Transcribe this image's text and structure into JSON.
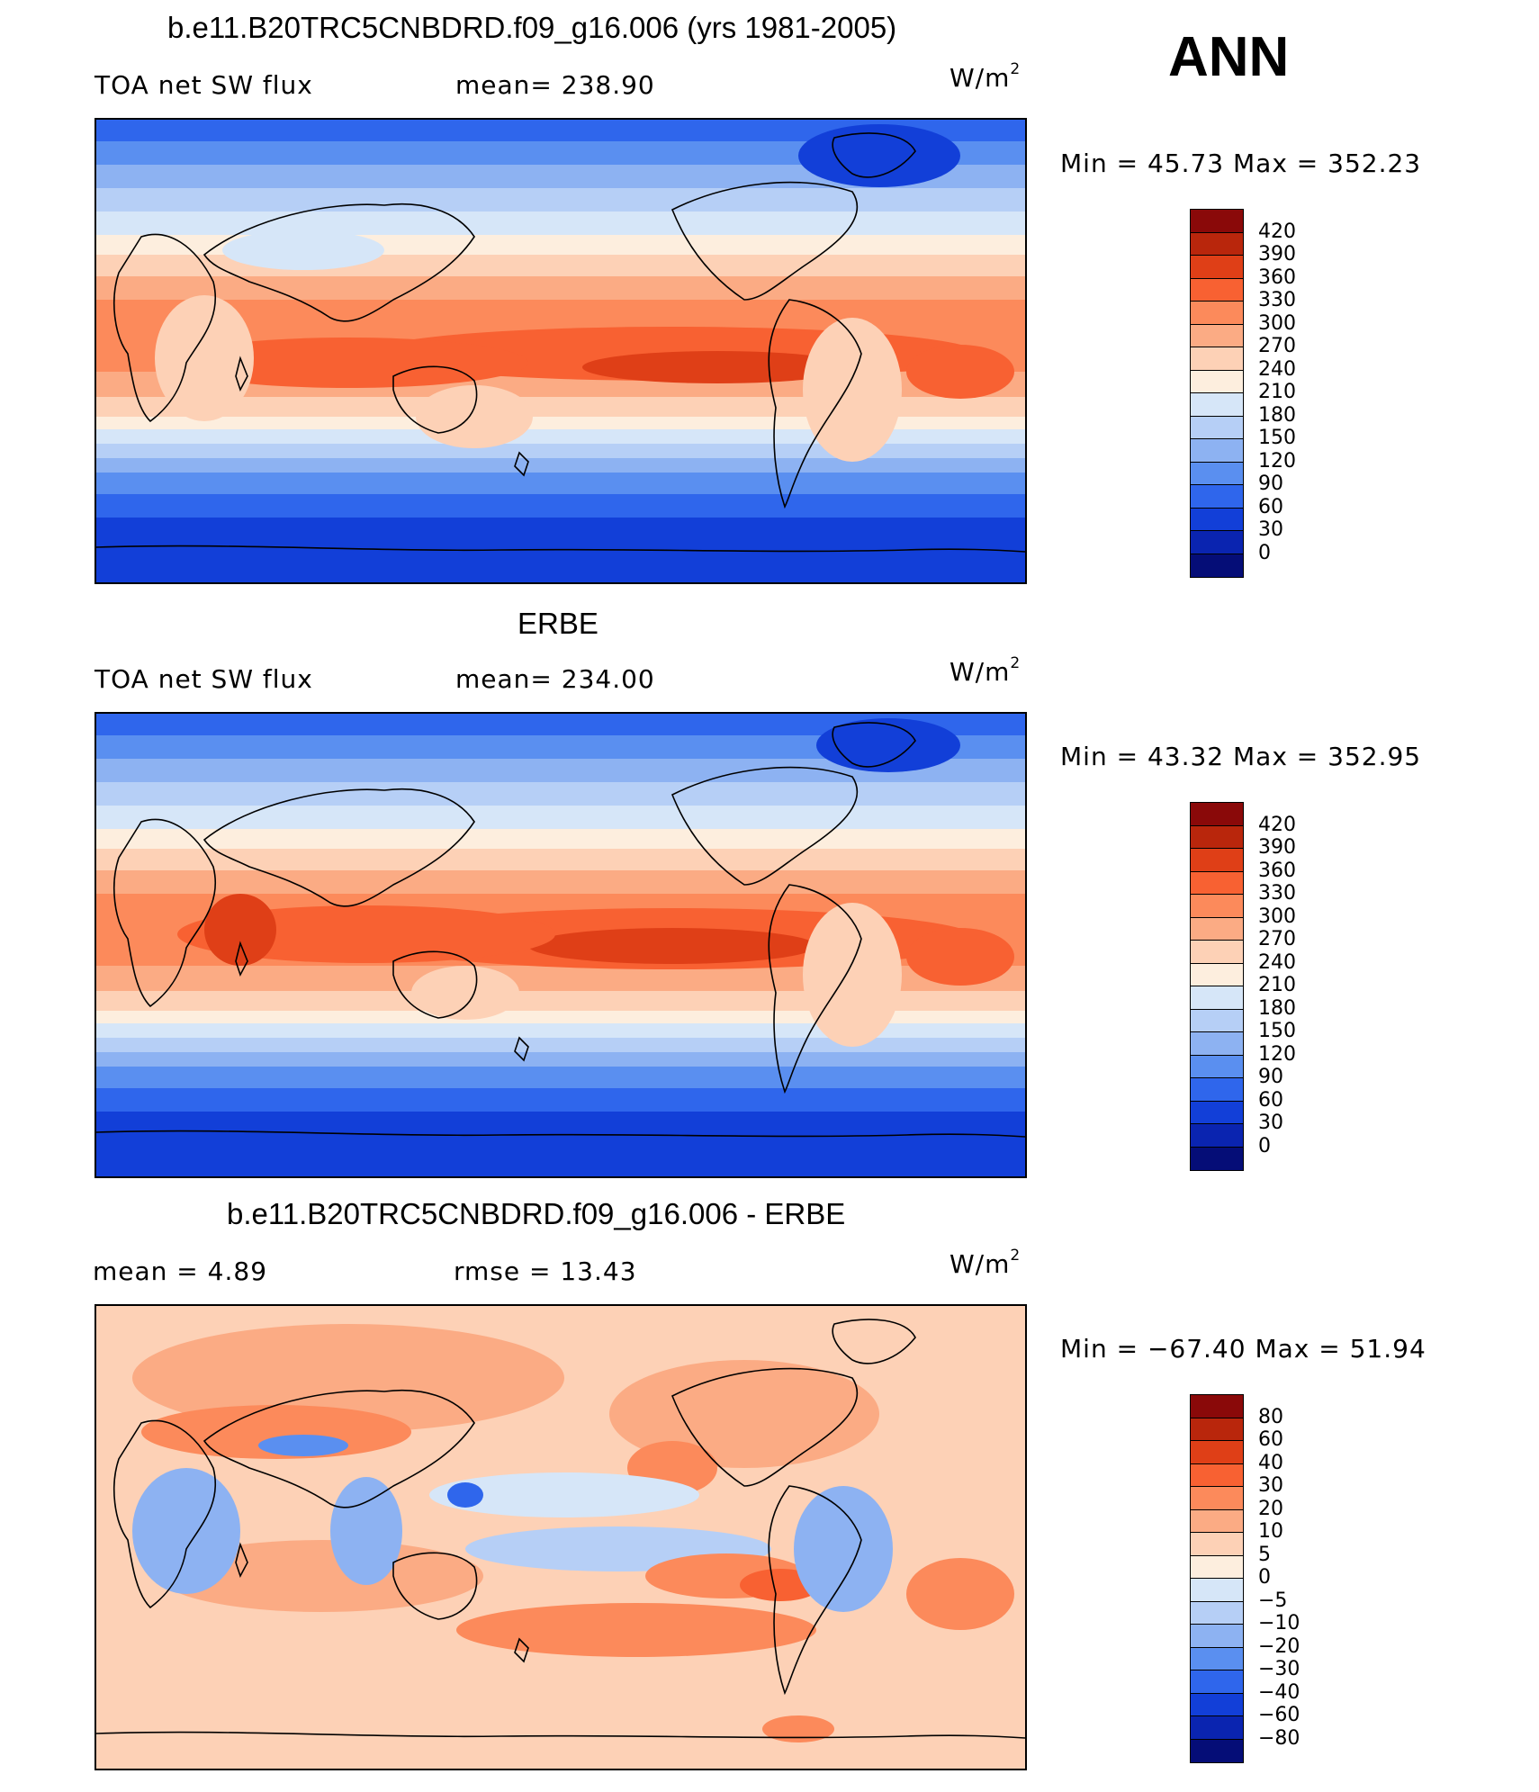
{
  "season": "ANN",
  "panels": [
    {
      "id": "model",
      "title": "b.e11.B20TRC5CNBDRD.f09_g16.006 (yrs 1981-2005)",
      "left_text": "TOA net SW flux",
      "center_text": "mean=  238.90",
      "units_base": "W/m",
      "units_exp": "2",
      "minmax": "Min =   45.73 Max = 352.23",
      "levels": [
        "420",
        "390",
        "360",
        "330",
        "300",
        "270",
        "240",
        "210",
        "180",
        "150",
        "120",
        "90",
        "60",
        "30",
        "0"
      ],
      "colors": [
        "#8a0909",
        "#b9260c",
        "#df3f17",
        "#f86132",
        "#fc8a5b",
        "#fbab84",
        "#fdd1b6",
        "#fdeede",
        "#d6e6f8",
        "#b6cff6",
        "#8db2f2",
        "#5a8ff0",
        "#2f66ec",
        "#123fd8",
        "#0a24b0",
        "#050d77"
      ]
    },
    {
      "id": "obs",
      "title": "ERBE",
      "left_text": "TOA net SW flux",
      "center_text": "mean=  234.00",
      "units_base": "W/m",
      "units_exp": "2",
      "minmax": "Min =   43.32 Max = 352.95",
      "levels": [
        "420",
        "390",
        "360",
        "330",
        "300",
        "270",
        "240",
        "210",
        "180",
        "150",
        "120",
        "90",
        "60",
        "30",
        "0"
      ],
      "colors": [
        "#8a0909",
        "#b9260c",
        "#df3f17",
        "#f86132",
        "#fc8a5b",
        "#fbab84",
        "#fdd1b6",
        "#fdeede",
        "#d6e6f8",
        "#b6cff6",
        "#8db2f2",
        "#5a8ff0",
        "#2f66ec",
        "#123fd8",
        "#0a24b0",
        "#050d77"
      ]
    },
    {
      "id": "diff",
      "title": "b.e11.B20TRC5CNBDRD.f09_g16.006 - ERBE",
      "left_text": "mean =    4.89",
      "center_text": "rmse =   13.43",
      "units_base": "W/m",
      "units_exp": "2",
      "minmax": "Min = −67.40 Max =   51.94",
      "levels": [
        "80",
        "60",
        "40",
        "30",
        "20",
        "10",
        "5",
        "0",
        "−5",
        "−10",
        "−20",
        "−30",
        "−40",
        "−60",
        "−80"
      ],
      "colors": [
        "#8a0909",
        "#b9260c",
        "#df3f17",
        "#f86132",
        "#fc8a5b",
        "#fbab84",
        "#fdd1b6",
        "#fdeede",
        "#d6e6f8",
        "#b6cff6",
        "#8db2f2",
        "#5a8ff0",
        "#2f66ec",
        "#123fd8",
        "#0a24b0",
        "#050d77"
      ]
    }
  ]
}
